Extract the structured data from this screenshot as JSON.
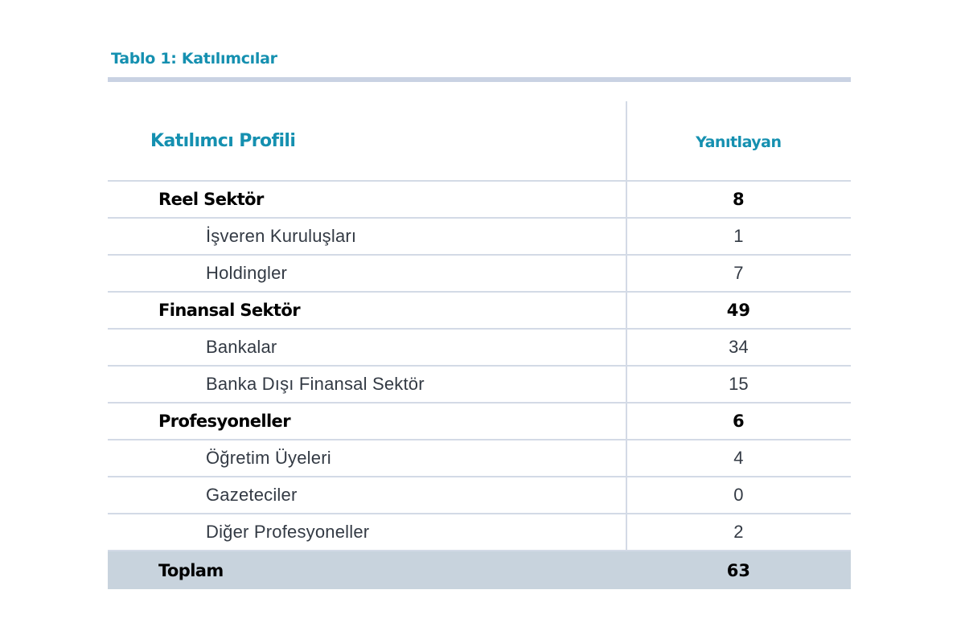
{
  "caption": "Tablo 1: Katılımcılar",
  "table": {
    "headers": {
      "profile": "Katılımcı Profili",
      "count": "Yanıtlayan"
    },
    "rows": [
      {
        "label": "Reel Sektör",
        "value": "8",
        "type": "group"
      },
      {
        "label": "İşveren Kuruluşları",
        "value": "1",
        "type": "sub"
      },
      {
        "label": "Holdingler",
        "value": "7",
        "type": "sub"
      },
      {
        "label": "Finansal Sektör",
        "value": "49",
        "type": "group"
      },
      {
        "label": "Bankalar",
        "value": "34",
        "type": "sub"
      },
      {
        "label": "Banka Dışı Finansal Sektör",
        "value": "15",
        "type": "sub"
      },
      {
        "label": "Profesyoneller",
        "value": "6",
        "type": "group"
      },
      {
        "label": "Öğretim Üyeleri",
        "value": "4",
        "type": "sub"
      },
      {
        "label": "Gazeteciler",
        "value": "0",
        "type": "sub"
      },
      {
        "label": "Diğer Profesyoneller",
        "value": "2",
        "type": "sub"
      }
    ],
    "total": {
      "label": "Toplam",
      "value": "63"
    }
  },
  "colors": {
    "accent": "#1590b0",
    "rule": "#c9d2e3",
    "grid": "#d3dae6",
    "total_bg": "#c8d3dd"
  }
}
